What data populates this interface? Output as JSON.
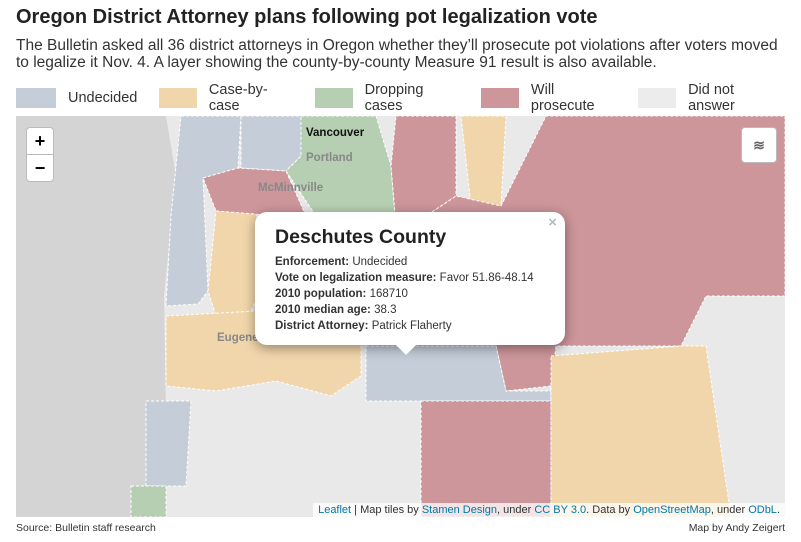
{
  "header": {
    "title": "Oregon District Attorney plans following pot legalization vote",
    "subtitle": "The Bulletin asked all 36 district attorneys in Oregon whether they’ll prosecute pot violations after voters moved to legalize it Nov. 4. A layer showing the county-by-county Measure 91 result is also available."
  },
  "legend": [
    {
      "label": "Undecided",
      "color": "#c4cdd8"
    },
    {
      "label": "Case-by-case",
      "color": "#f2d6ab"
    },
    {
      "label": "Dropping cases",
      "color": "#b6cfb3"
    },
    {
      "label": "Will prosecute",
      "color": "#cd969b"
    },
    {
      "label": "Did not answer",
      "color": "#ececec"
    }
  ],
  "map": {
    "zoom_in": "+",
    "zoom_out": "−",
    "places": [
      "Vancouver",
      "Portland",
      "McMinnville",
      "Eugene"
    ]
  },
  "popup": {
    "title": "Deschutes County",
    "close": "×",
    "fields": [
      {
        "label": "Enforcement:",
        "value": "Undecided"
      },
      {
        "label": "Vote on legalization measure:",
        "value": "Favor 51.86-48.14"
      },
      {
        "label": "2010 population:",
        "value": "168710"
      },
      {
        "label": "2010 median age:",
        "value": "38.3"
      },
      {
        "label": "District Attorney:",
        "value": "Patrick Flaherty"
      }
    ]
  },
  "attribution": [
    "Leaflet",
    " | Map tiles by ",
    "Stamen Design",
    ", under ",
    "CC BY 3.0",
    ". Data by ",
    "OpenStreetMap",
    ", under ",
    "ODbL",
    "."
  ],
  "footer": {
    "source": "Source: Bulletin staff research",
    "credit": "Map by Andy Zeigert"
  }
}
